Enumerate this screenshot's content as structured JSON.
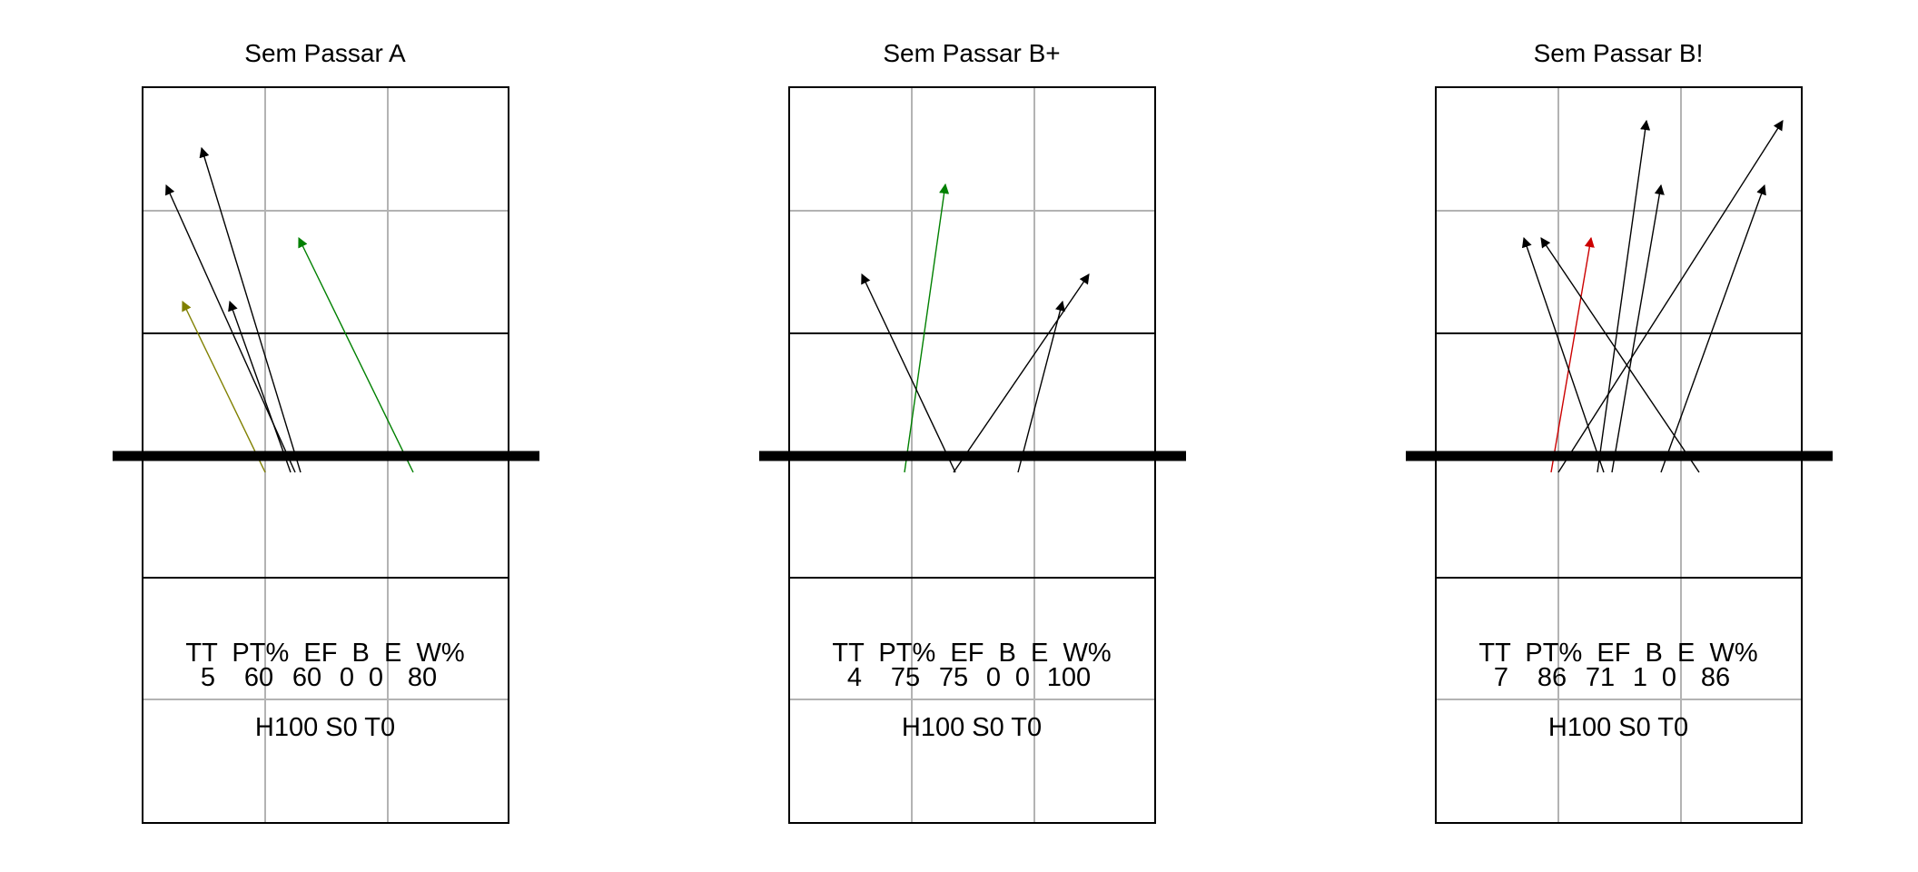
{
  "panels": [
    {
      "title": "Sem Passar A",
      "stats_header": "TT  PT%  EF  B  E  W%",
      "stats_values": [
        "5",
        "60",
        "60",
        "0",
        "0",
        "80"
      ],
      "footer": "H100 S0 T0",
      "arrows": [
        {
          "color": "#000000"
        },
        {
          "color": "#000000"
        },
        {
          "color": "#000000"
        },
        {
          "color": "#808000"
        },
        {
          "color": "#008000"
        }
      ]
    },
    {
      "title": "Sem Passar B+",
      "stats_header": "TT  PT%  EF  B  E  W%",
      "stats_values": [
        "4",
        "75",
        "75",
        "0",
        "0",
        "100"
      ],
      "footer": "H100 S0 T0",
      "arrows": [
        {
          "color": "#008000"
        },
        {
          "color": "#000000"
        },
        {
          "color": "#000000"
        },
        {
          "color": "#000000"
        }
      ]
    },
    {
      "title": "Sem Passar B!",
      "stats_header": "TT  PT%  EF  B  E  W%",
      "stats_values": [
        "7",
        "86",
        "71",
        "1",
        "0",
        "86"
      ],
      "footer": "H100 S0 T0",
      "arrows": [
        {
          "color": "#cc0000"
        },
        {
          "color": "#000000"
        },
        {
          "color": "#000000"
        },
        {
          "color": "#000000"
        },
        {
          "color": "#000000"
        },
        {
          "color": "#000000"
        },
        {
          "color": "#000000"
        }
      ]
    }
  ]
}
